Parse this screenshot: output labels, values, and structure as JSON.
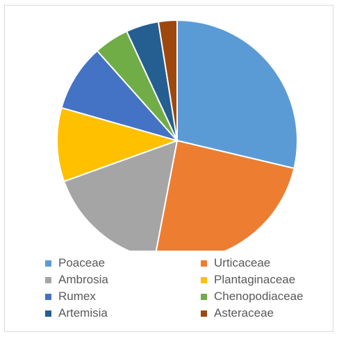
{
  "chart_data": {
    "type": "pie",
    "title": "",
    "series": [
      {
        "labels": [
          "Poaceae",
          "Urticaceae",
          "Ambrosia",
          "Plantaginaceae",
          "Rumex",
          "Chenopodiaceae",
          "Artemisia",
          "Asteraceae"
        ],
        "values": [
          28.7,
          24.3,
          16.5,
          9.9,
          9.0,
          4.7,
          4.4,
          2.5
        ],
        "colors": [
          "#5b9bd5",
          "#ed7d31",
          "#a5a5a5",
          "#ffc000",
          "#4472c4",
          "#70ad47",
          "#255e91",
          "#9e480e"
        ]
      }
    ],
    "legend_position": "bottom",
    "start_angle": "12 o'clock, clockwise"
  }
}
